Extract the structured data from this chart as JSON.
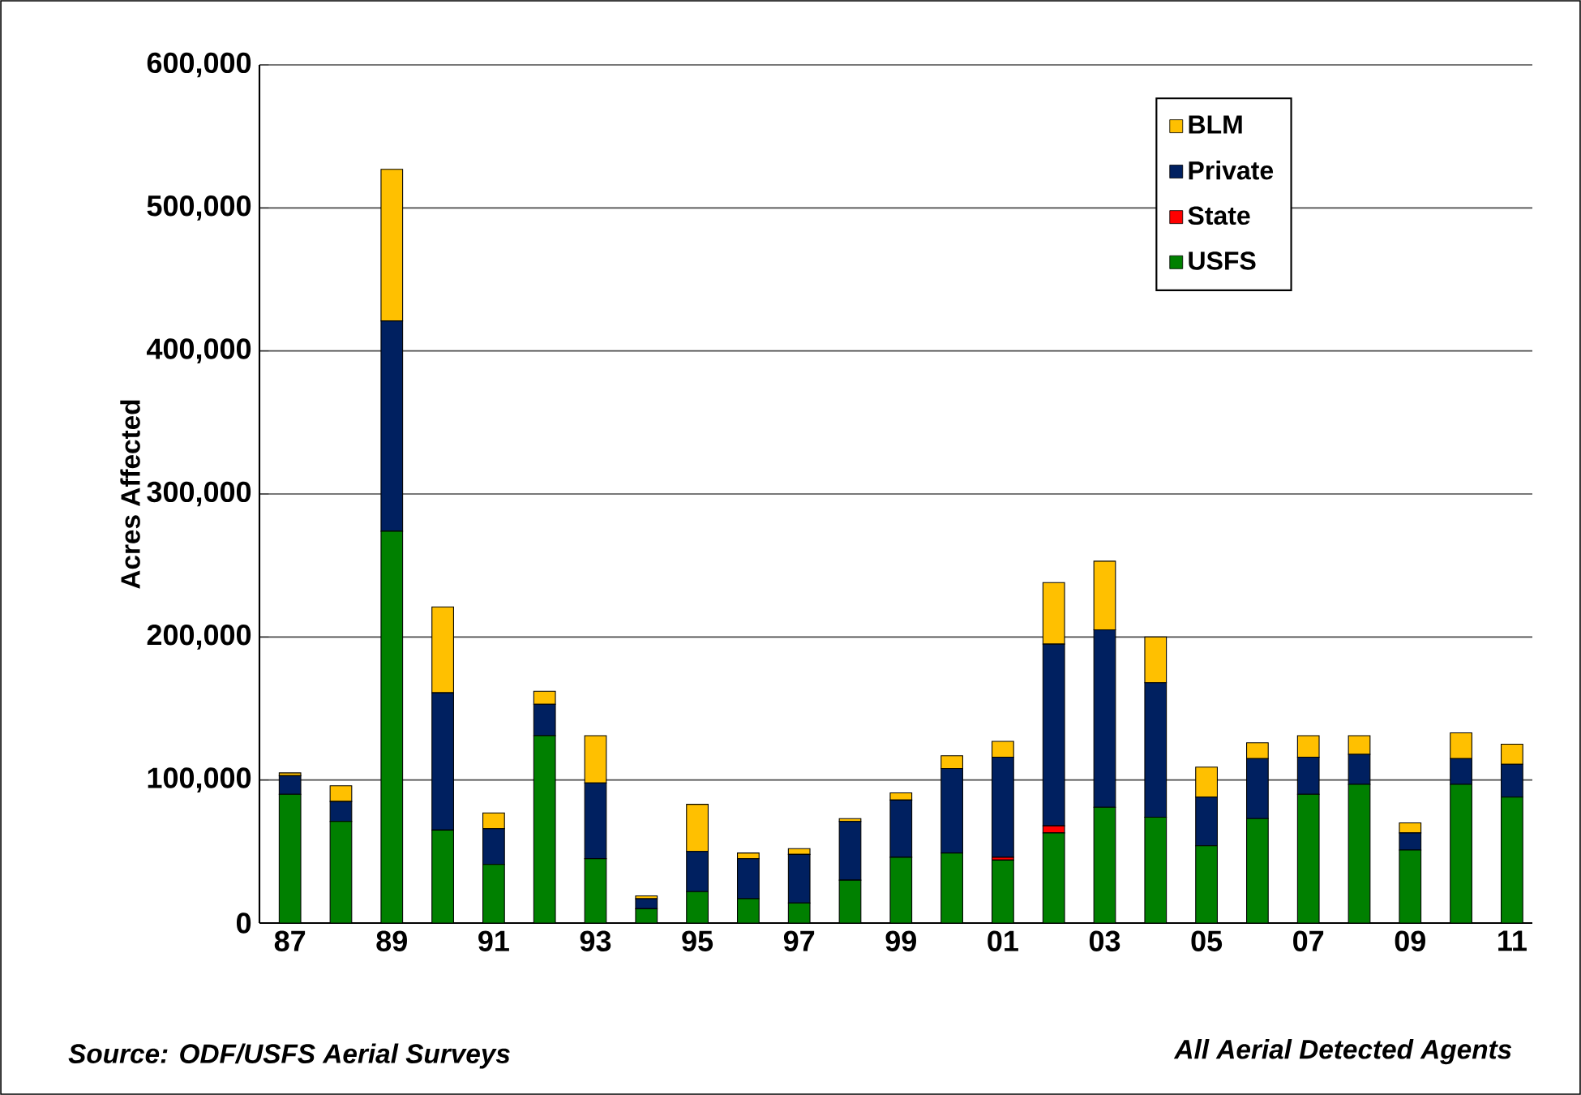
{
  "chart_data": {
    "type": "bar",
    "stacked": true,
    "ylabel": "Acres Affected",
    "categories": [
      "87",
      null,
      "89",
      null,
      "91",
      null,
      "93",
      null,
      "95",
      null,
      "97",
      null,
      "99",
      null,
      "01",
      null,
      "03",
      null,
      "05",
      null,
      "07",
      null,
      "09",
      null,
      "11"
    ],
    "series": [
      {
        "name": "USFS",
        "color": "#008000",
        "values": [
          90000,
          71000,
          274000,
          65000,
          41000,
          131000,
          45000,
          10000,
          22000,
          17000,
          14000,
          30000,
          46000,
          49000,
          44000,
          63000,
          81000,
          74000,
          54000,
          73000,
          90000,
          97000,
          51000,
          97000,
          88000
        ]
      },
      {
        "name": "State",
        "color": "#ff0000",
        "values": [
          0,
          0,
          0,
          0,
          0,
          0,
          0,
          0,
          0,
          0,
          0,
          0,
          0,
          0,
          2000,
          5000,
          0,
          0,
          0,
          0,
          0,
          0,
          0,
          0,
          0
        ]
      },
      {
        "name": "Private",
        "color": "#002060",
        "values": [
          13000,
          14000,
          147000,
          96000,
          25000,
          22000,
          53000,
          7000,
          28000,
          28000,
          34000,
          41000,
          40000,
          59000,
          70000,
          127000,
          124000,
          94000,
          34000,
          42000,
          26000,
          21000,
          12000,
          18000,
          23000
        ]
      },
      {
        "name": "BLM",
        "color": "#ffc000",
        "values": [
          2000,
          11000,
          106000,
          60000,
          11000,
          9000,
          33000,
          2000,
          33000,
          4000,
          4000,
          2000,
          5000,
          9000,
          11000,
          43000,
          48000,
          32000,
          21000,
          11000,
          15000,
          13000,
          7000,
          18000,
          14000
        ]
      }
    ],
    "ylim": [
      0,
      600000
    ],
    "yticks": [
      {
        "value": 0,
        "label": "0"
      },
      {
        "value": 100000,
        "label": "100,000"
      },
      {
        "value": 200000,
        "label": "200,000"
      },
      {
        "value": 300000,
        "label": "300,000"
      },
      {
        "value": 400000,
        "label": "400,000"
      },
      {
        "value": 500000,
        "label": "500,000"
      },
      {
        "value": 600000,
        "label": "600,000"
      }
    ],
    "grid": "y",
    "legend": "top right",
    "annotations": [
      "Source: ODF/USFS Aerial Surveys",
      "All Aerial Detected Agents"
    ]
  }
}
